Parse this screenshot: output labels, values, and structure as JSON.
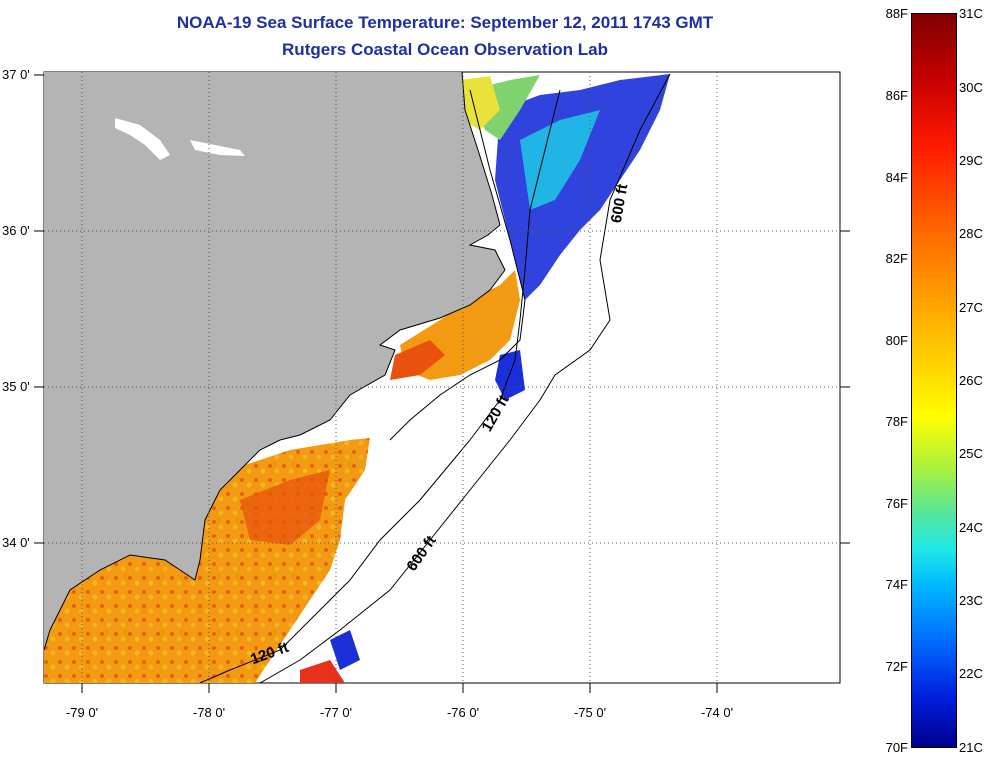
{
  "header": {
    "title": "NOAA-19 Sea Surface Temperature:  September 12, 2011 1743 GMT",
    "subtitle": "Rutgers Coastal Ocean Observation Lab"
  },
  "axes": {
    "latitude_labels": [
      "37 0'",
      "36 0'",
      "35 0'",
      "34 0'"
    ],
    "longitude_labels": [
      "-79 0'",
      "-78 0'",
      "-77 0'",
      "-76 0'",
      "-75 0'",
      "-74 0'"
    ]
  },
  "depth_contours": {
    "label_600_east": "600 ft",
    "label_120_mid": "120 ft",
    "label_600_south": "600 ft",
    "label_120_south": "120 ft"
  },
  "colorbar": {
    "fahrenheit": [
      "88F",
      "86F",
      "84F",
      "82F",
      "80F",
      "78F",
      "76F",
      "74F",
      "72F",
      "70F"
    ],
    "celsius": [
      "31C",
      "30C",
      "29C",
      "28C",
      "27C",
      "26C",
      "25C",
      "24C",
      "23C",
      "22C",
      "21C"
    ]
  },
  "colors": {
    "title": "#1e2fa0",
    "land": "#b4b4b4",
    "warm": "#f29a12",
    "hot": "#e8520e",
    "cold": "#1a2fd8"
  }
}
